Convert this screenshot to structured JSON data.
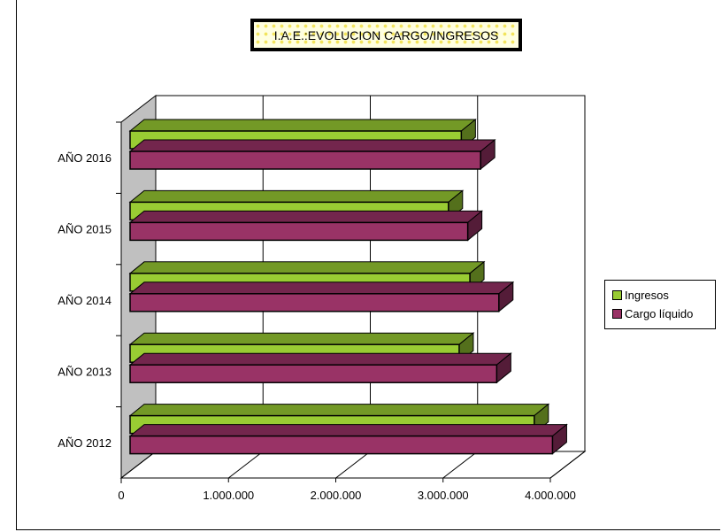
{
  "chart_data": {
    "type": "bar",
    "orientation": "horizontal",
    "title": "I.A.E.:EVOLUCION CARGO/INGRESOS",
    "categories": [
      "AÑO 2016",
      "AÑO 2015",
      "AÑO 2014",
      "AÑO 2013",
      "AÑO 2012"
    ],
    "series": [
      {
        "name": "Ingresos",
        "color": "#99cc33",
        "values": [
          3170000,
          3050000,
          3250000,
          3150000,
          3850000
        ]
      },
      {
        "name": "Cargo líquido",
        "color": "#993366",
        "values": [
          3350000,
          3230000,
          3520000,
          3500000,
          4020000
        ]
      }
    ],
    "xlim": [
      0,
      4000000
    ],
    "x_ticks": [
      0,
      1000000,
      2000000,
      3000000,
      4000000
    ],
    "x_tick_labels": [
      "0",
      "1.000.000",
      "2.000.000",
      "3.000.000",
      "4.000.000"
    ],
    "grid": true,
    "legend_position": "right",
    "style": "3d"
  }
}
